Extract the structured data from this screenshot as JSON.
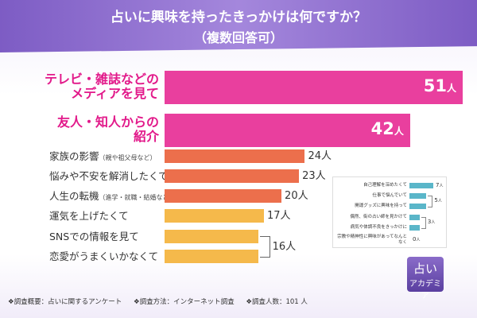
{
  "title": "占いに興味を持ったきっかけは何ですか？",
  "subtitle": "（複数回答可）",
  "chart_data": {
    "type": "bar",
    "title": "占いに興味を持ったきっかけは何ですか？",
    "subtitle": "（複数回答可）",
    "unit": "人",
    "categories": [
      "テレビ・雑誌などのメディアを見て",
      "友人・知人からの紹介",
      "家族の影響（親や祖父母など）",
      "悩みや不安を解消したくて",
      "人生の転機（進学・就職・結婚など）",
      "運気を上げたくて",
      "SNSでの情報を見て",
      "恋愛がうまくいかなくて"
    ],
    "values": [
      51,
      42,
      24,
      23,
      20,
      17,
      16,
      16
    ],
    "xlim": [
      0,
      51
    ],
    "bars": [
      {
        "l1": "テレビ・雑誌などの",
        "l2": "メディアを見て",
        "value": 51,
        "num": "51",
        "color": "#e93f9e",
        "big": true
      },
      {
        "l1": "友人・知人からの",
        "l2": "紹介",
        "value": 42,
        "num": "42",
        "color": "#e93f9e",
        "big": true
      },
      {
        "main": "家族の影響",
        "note": "（親や祖父母など）",
        "value": 24,
        "num": "24",
        "color": "#ec6f4c",
        "big": false
      },
      {
        "main": "悩みや不安を解消したくて",
        "note": "",
        "value": 23,
        "num": "23",
        "color": "#ec6f4c",
        "big": false
      },
      {
        "main": "人生の転機",
        "note": "（進学・就職・結婚など）",
        "value": 20,
        "num": "20",
        "color": "#ec6f4c",
        "big": false
      },
      {
        "main": "運気を上げたくて",
        "note": "",
        "value": 17,
        "num": "17",
        "color": "#f5b94b",
        "big": false
      },
      {
        "main": "SNSでの情報を見て",
        "note": "",
        "value": 16,
        "num": "",
        "color": "#f5b94b",
        "big": false
      },
      {
        "main": "恋愛がうまくいかなくて",
        "note": "",
        "value": 16,
        "num": "",
        "color": "#f5b94b",
        "big": false
      }
    ],
    "shared_label": "16",
    "inset": {
      "categories": [
        "自己理解を深めたくて",
        "仕事で悩んでいて",
        "開運グッズに興味を持って",
        "偶然、街の占い師を見かけて",
        "病気や体調不良をきっかけに",
        "宗教や精神性に興味があってなんとなく"
      ],
      "values": [
        7,
        5,
        5,
        3,
        3,
        0
      ],
      "xlim": [
        0,
        7
      ],
      "color": "#5ab6c9",
      "labels": [
        "7",
        "5",
        "3",
        "0"
      ]
    }
  },
  "logo": {
    "text": "占い",
    "sub": "アカデミア"
  },
  "footer": {
    "item1": "❖調査概要：占いに関するアンケート",
    "item2": "❖調査方法：インターネット調査",
    "item3": "❖調査人数：101 人"
  }
}
